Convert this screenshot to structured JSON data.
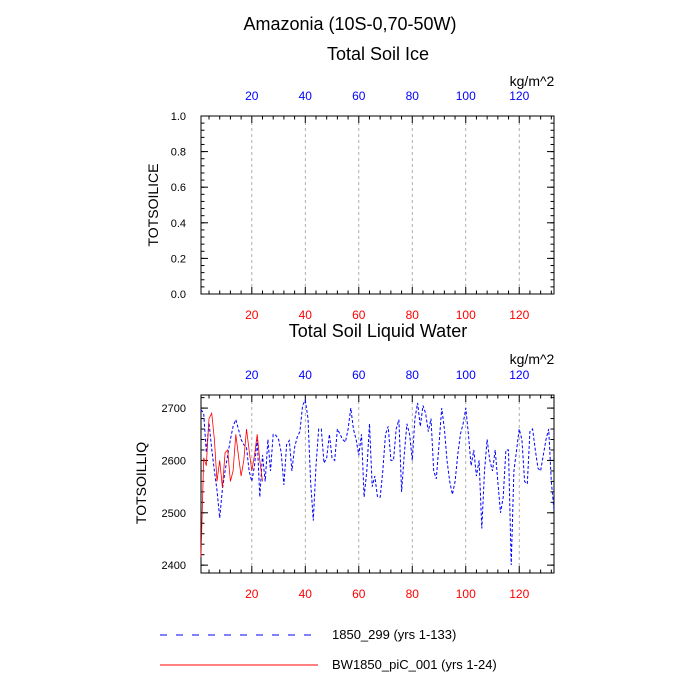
{
  "main_title": "Amazonia (10S-0,70-50W)",
  "colors": {
    "bottom_ticks": "#ff0000",
    "top_ticks": "#0000ff",
    "series1": "#0000ff",
    "series2": "#ff0000",
    "grid": "#999999"
  },
  "chart_data": [
    {
      "type": "line",
      "title": "Total Soil Ice",
      "ylabel": "TOTSOILICE",
      "top_axis_label": "kg/m^2",
      "xlim": [
        1,
        133
      ],
      "ylim": [
        0,
        1
      ],
      "xticks": [
        20,
        40,
        60,
        80,
        100,
        120
      ],
      "yticks": [
        0.0,
        0.2,
        0.4,
        0.6,
        0.8,
        1.0
      ],
      "ytick_labels": [
        "0.0",
        "0.2",
        "0.4",
        "0.6",
        "0.8",
        "1.0"
      ],
      "grid": "vertical dashed",
      "series": []
    },
    {
      "type": "line",
      "title": "Total Soil Liquid Water",
      "ylabel": "TOTSOILLIQ",
      "top_axis_label": "kg/m^2",
      "xlim": [
        1,
        133
      ],
      "ylim": [
        2385,
        2725
      ],
      "xticks": [
        20,
        40,
        60,
        80,
        100,
        120
      ],
      "yticks": [
        2400,
        2500,
        2600,
        2700
      ],
      "ytick_labels": [
        "2400",
        "2500",
        "2600",
        "2700"
      ],
      "grid": "vertical dashed",
      "series": [
        {
          "name": "1850_299 (yrs 1-133)",
          "style": "dashed",
          "color": "#0000ff",
          "values": [
            2697,
            2690,
            2615,
            2672,
            2622,
            2580,
            2543,
            2490,
            2545,
            2580,
            2610,
            2640,
            2665,
            2678,
            2660,
            2640,
            2630,
            2625,
            2580,
            2560,
            2590,
            2640,
            2530,
            2610,
            2560,
            2640,
            2580,
            2650,
            2648,
            2640,
            2615,
            2553,
            2630,
            2638,
            2580,
            2625,
            2645,
            2655,
            2705,
            2715,
            2680,
            2560,
            2485,
            2590,
            2660,
            2660,
            2595,
            2605,
            2650,
            2605,
            2600,
            2660,
            2650,
            2640,
            2635,
            2660,
            2700,
            2660,
            2640,
            2610,
            2650,
            2530,
            2580,
            2670,
            2550,
            2570,
            2530,
            2530,
            2580,
            2650,
            2665,
            2600,
            2600,
            2660,
            2678,
            2540,
            2610,
            2670,
            2650,
            2600,
            2680,
            2710,
            2665,
            2705,
            2690,
            2655,
            2680,
            2580,
            2565,
            2630,
            2700,
            2660,
            2600,
            2560,
            2535,
            2560,
            2610,
            2650,
            2670,
            2700,
            2650,
            2590,
            2620,
            2570,
            2600,
            2470,
            2580,
            2640,
            2600,
            2580,
            2620,
            2560,
            2500,
            2530,
            2620,
            2620,
            2400,
            2580,
            2620,
            2660,
            2640,
            2560,
            2555,
            2655,
            2660,
            2620,
            2585,
            2580,
            2610,
            2640,
            2660,
            2560,
            2505
          ],
          "x_start": 1
        },
        {
          "name": "BW1850_piC_001 (yrs 1-24)",
          "style": "solid",
          "color": "#ff0000",
          "values": [
            2415,
            2605,
            2590,
            2680,
            2690,
            2640,
            2560,
            2600,
            2548,
            2615,
            2620,
            2560,
            2580,
            2650,
            2610,
            2570,
            2600,
            2660,
            2620,
            2580,
            2610,
            2650,
            2600,
            2560
          ],
          "x_start": 1
        }
      ]
    }
  ],
  "legend": [
    {
      "label": "1850_299 (yrs 1-133)",
      "style": "dashed",
      "color": "#0000ff"
    },
    {
      "label": "BW1850_piC_001 (yrs 1-24)",
      "style": "solid",
      "color": "#ff0000"
    }
  ]
}
